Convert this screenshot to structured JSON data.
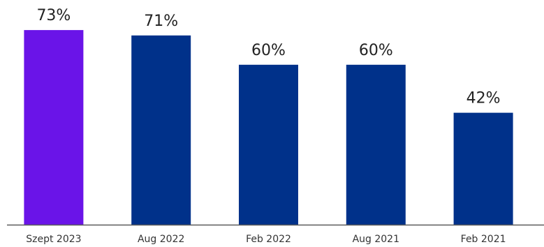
{
  "chart_data": {
    "type": "bar",
    "title": "",
    "xlabel": "",
    "ylabel": "",
    "categories": [
      "Szept 2023",
      "Aug 2022",
      "Feb 2022",
      "Aug 2021",
      "Feb 2021"
    ],
    "values": [
      73,
      71,
      60,
      60,
      42
    ],
    "value_labels": [
      "73%",
      "71%",
      "60%",
      "60%",
      "42%"
    ],
    "unit": "%",
    "ylim": [
      0,
      100
    ],
    "grid": false,
    "legend": "none",
    "colors": {
      "highlight": "#6a14e8",
      "default": "#00318a",
      "axis": "#5a5a5a",
      "text": "#222222"
    },
    "highlight_index": 0
  }
}
